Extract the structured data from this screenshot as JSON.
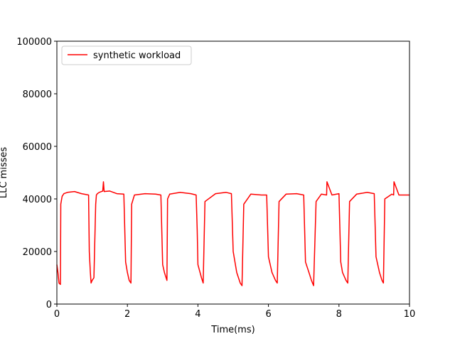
{
  "chart_data": {
    "type": "line",
    "title": "",
    "xlabel": "Time(ms)",
    "ylabel": "LLC misses",
    "xlim": [
      0,
      10
    ],
    "ylim": [
      0,
      100000
    ],
    "xticks": [
      0,
      2,
      4,
      6,
      8,
      10
    ],
    "xtick_labels": [
      "0",
      "2",
      "4",
      "6",
      "8",
      "10"
    ],
    "yticks": [
      0,
      20000,
      40000,
      60000,
      80000,
      100000
    ],
    "ytick_labels": [
      "0",
      "20000",
      "40000",
      "60000",
      "80000",
      "100000"
    ],
    "grid": false,
    "legend_position": "top-left",
    "series": [
      {
        "name": "synthetic workload",
        "color": "#ff0000",
        "x": [
          0,
          0.03,
          0.06,
          0.1,
          0.11,
          0.15,
          0.2,
          0.3,
          0.5,
          0.7,
          0.9,
          0.92,
          0.95,
          0.97,
          1.0,
          1.05,
          1.1,
          1.12,
          1.15,
          1.2,
          1.3,
          1.32,
          1.34,
          1.5,
          1.7,
          1.9,
          1.95,
          2.0,
          2.05,
          2.1,
          2.12,
          2.2,
          2.5,
          2.8,
          2.95,
          3.0,
          3.05,
          3.12,
          3.14,
          3.2,
          3.5,
          3.8,
          3.95,
          3.98,
          4.0,
          4.1,
          4.15,
          4.2,
          4.5,
          4.8,
          4.95,
          5.0,
          5.1,
          5.2,
          5.25,
          5.3,
          5.5,
          5.8,
          5.95,
          6.0,
          6.1,
          6.2,
          6.25,
          6.3,
          6.5,
          6.8,
          7.0,
          7.05,
          7.15,
          7.22,
          7.28,
          7.35,
          7.5,
          7.65,
          7.66,
          7.8,
          8.0,
          8.05,
          8.1,
          8.2,
          8.25,
          8.3,
          8.5,
          8.8,
          9.0,
          9.05,
          9.15,
          9.22,
          9.26,
          9.3,
          9.5,
          9.55,
          9.56,
          9.7,
          10.0
        ],
        "values": [
          15000,
          12000,
          8000,
          7500,
          38000,
          41000,
          42000,
          42500,
          42800,
          42000,
          41500,
          20000,
          12000,
          8000,
          9000,
          10000,
          38000,
          41500,
          42000,
          42500,
          43000,
          46500,
          42800,
          43000,
          42000,
          41800,
          16000,
          12000,
          9000,
          8000,
          38000,
          41500,
          42000,
          41800,
          41500,
          15000,
          12000,
          9000,
          40000,
          41800,
          42500,
          42000,
          41500,
          28000,
          15000,
          10000,
          8000,
          39000,
          42000,
          42500,
          42000,
          20000,
          12000,
          8000,
          7000,
          38000,
          41800,
          41500,
          41500,
          18000,
          12000,
          9000,
          8000,
          39000,
          41800,
          42000,
          41500,
          16000,
          12000,
          9000,
          7000,
          39000,
          41800,
          41500,
          46500,
          41500,
          42000,
          16000,
          12000,
          9000,
          8000,
          39000,
          41800,
          42500,
          42000,
          18000,
          12000,
          9000,
          8000,
          40000,
          41800,
          41500,
          46500,
          41500,
          41500
        ]
      }
    ]
  }
}
